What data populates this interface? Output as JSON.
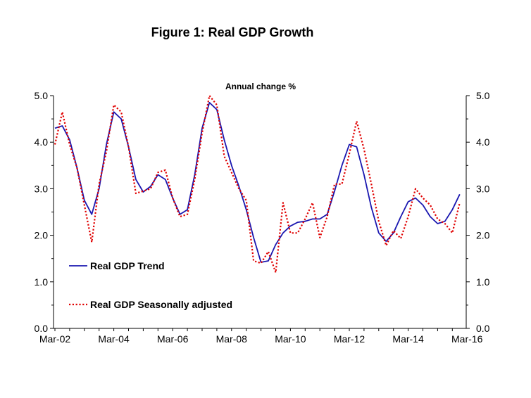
{
  "figure_title": "Figure 1: Real GDP Growth",
  "colors": {
    "trend": "#1a17b0",
    "seasonal": "#e00000",
    "axis": "#000000"
  },
  "chart_data": {
    "type": "line",
    "title": "Annual change %",
    "xlabel": "",
    "ylabel": "",
    "ylim": [
      0,
      5
    ],
    "yticks": [
      0,
      1,
      2,
      3,
      4,
      5
    ],
    "ytick_labels": [
      "0.0",
      "1.0",
      "2.0",
      "3.0",
      "4.0",
      "5.0"
    ],
    "xtick_labels": [
      "Mar-02",
      "Mar-04",
      "Mar-06",
      "Mar-08",
      "Mar-10",
      "Mar-12",
      "Mar-14",
      "Mar-16"
    ],
    "xtick_every": 8,
    "x_minor_every": 2,
    "x": [
      "Mar-02",
      "Jun-02",
      "Sep-02",
      "Dec-02",
      "Mar-03",
      "Jun-03",
      "Sep-03",
      "Dec-03",
      "Mar-04",
      "Jun-04",
      "Sep-04",
      "Dec-04",
      "Mar-05",
      "Jun-05",
      "Sep-05",
      "Dec-05",
      "Mar-06",
      "Jun-06",
      "Sep-06",
      "Dec-06",
      "Mar-07",
      "Jun-07",
      "Sep-07",
      "Dec-07",
      "Mar-08",
      "Jun-08",
      "Sep-08",
      "Dec-08",
      "Mar-09",
      "Jun-09",
      "Sep-09",
      "Dec-09",
      "Mar-10",
      "Jun-10",
      "Sep-10",
      "Dec-10",
      "Mar-11",
      "Jun-11",
      "Sep-11",
      "Dec-11",
      "Mar-12",
      "Jun-12",
      "Sep-12",
      "Dec-12",
      "Mar-13",
      "Jun-13",
      "Sep-13",
      "Dec-13",
      "Mar-14",
      "Jun-14",
      "Sep-14",
      "Dec-14",
      "Mar-15",
      "Jun-15",
      "Sep-15",
      "Dec-15"
    ],
    "series": [
      {
        "name": "Real GDP Trend",
        "style": "solid",
        "values": [
          4.3,
          4.35,
          4.05,
          3.45,
          2.75,
          2.45,
          3.0,
          3.95,
          4.65,
          4.5,
          3.9,
          3.2,
          2.93,
          3.05,
          3.3,
          3.2,
          2.8,
          2.45,
          2.55,
          3.3,
          4.3,
          4.85,
          4.7,
          4.05,
          3.5,
          3.05,
          2.55,
          1.95,
          1.42,
          1.45,
          1.8,
          2.05,
          2.2,
          2.28,
          2.3,
          2.35,
          2.35,
          2.45,
          2.95,
          3.5,
          3.95,
          3.9,
          3.3,
          2.6,
          2.05,
          1.87,
          2.05,
          2.4,
          2.72,
          2.8,
          2.65,
          2.4,
          2.25,
          2.3,
          2.55,
          2.88
        ]
      },
      {
        "name": "Real GDP Seasonally adjusted",
        "style": "dotted",
        "values": [
          3.95,
          4.65,
          3.95,
          3.45,
          2.65,
          1.85,
          3.1,
          3.8,
          4.8,
          4.65,
          3.9,
          2.9,
          2.95,
          3.0,
          3.35,
          3.4,
          2.8,
          2.4,
          2.45,
          3.2,
          4.2,
          5.0,
          4.8,
          3.7,
          3.35,
          3.0,
          2.75,
          1.45,
          1.4,
          1.65,
          1.2,
          2.7,
          2.05,
          2.05,
          2.35,
          2.7,
          1.95,
          2.4,
          3.1,
          3.1,
          3.75,
          4.45,
          3.85,
          3.1,
          2.3,
          1.78,
          2.1,
          1.93,
          2.4,
          3.0,
          2.8,
          2.65,
          2.35,
          2.25,
          2.05,
          2.7
        ]
      }
    ],
    "legend_position": "bottom-left inside plot"
  }
}
